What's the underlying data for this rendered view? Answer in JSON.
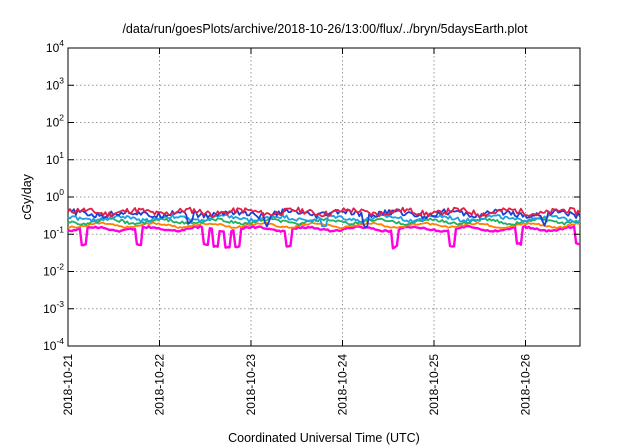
{
  "chart_data": {
    "type": "line",
    "title": "/data/run/goesPlots/archive/2018-10-26/13:00/flux/../bryn/5daysEarth.plot",
    "xlabel": "Coordinated Universal Time (UTC)",
    "ylabel": "cGy/day",
    "yscale": "log",
    "ylim": [
      0.0001,
      10000
    ],
    "xlim": [
      "2018-10-21",
      "2018-10-26 13:00"
    ],
    "grid": true,
    "legend": "none",
    "x_ticks": [
      "2018-10-21",
      "2018-10-22",
      "2018-10-23",
      "2018-10-24",
      "2018-10-25",
      "2018-10-26"
    ],
    "y_ticks": [
      {
        "base": "10",
        "exp": "-4",
        "value": 0.0001
      },
      {
        "base": "10",
        "exp": "-3",
        "value": 0.001
      },
      {
        "base": "10",
        "exp": "-2",
        "value": 0.01
      },
      {
        "base": "10",
        "exp": "-1",
        "value": 0.1
      },
      {
        "base": "10",
        "exp": "0",
        "value": 1
      },
      {
        "base": "10",
        "exp": "1",
        "value": 10
      },
      {
        "base": "10",
        "exp": "2",
        "value": 100
      },
      {
        "base": "10",
        "exp": "3",
        "value": 1000
      },
      {
        "base": "10",
        "exp": "4",
        "value": 10000
      }
    ],
    "series": [
      {
        "color": "#e0204a",
        "base": 0.4,
        "amp": 0.06,
        "dips": []
      },
      {
        "color": "#1f3fd0",
        "base": 0.36,
        "amp": 0.06,
        "dips": [
          0.93,
          0.24,
          0.39,
          0.58
        ]
      },
      {
        "color": "#1fa0e0",
        "base": 0.27,
        "amp": 0.04,
        "dips": [
          0.5
        ]
      },
      {
        "color": "#20b060",
        "base": 0.22,
        "amp": 0.03,
        "dips": []
      },
      {
        "color": "#ff8000",
        "base": 0.175,
        "amp": 0.02,
        "dips": []
      },
      {
        "color": "#ff00e0",
        "base": 0.14,
        "amp": 0.02,
        "dips": [
          0.03,
          0.14,
          0.27,
          0.29,
          0.31,
          0.33,
          0.43,
          0.64,
          0.75,
          0.88,
          0.995
        ]
      }
    ]
  }
}
